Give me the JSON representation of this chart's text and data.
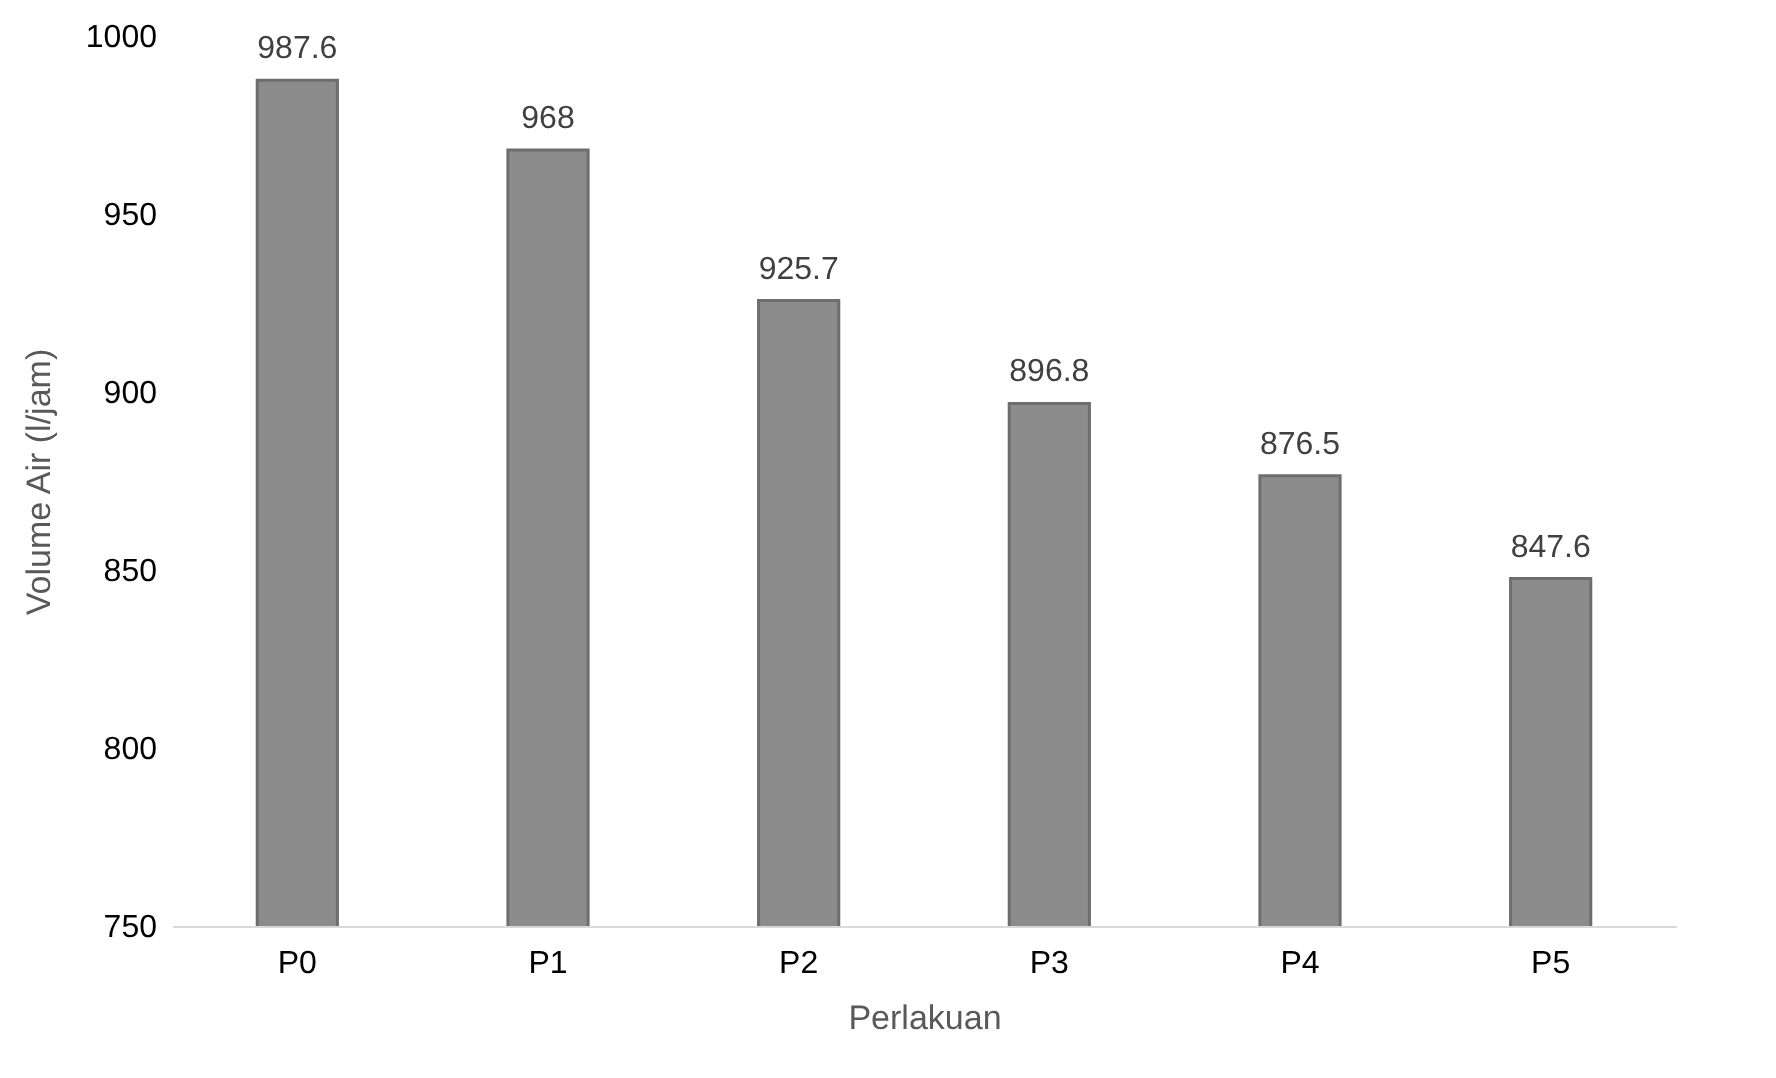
{
  "chart_data": {
    "type": "bar",
    "xlabel": "Perlakuan",
    "ylabel": "Volume Air (l/jam)",
    "categories": [
      "P0",
      "P1",
      "P2",
      "P3",
      "P4",
      "P5"
    ],
    "values": [
      987.6,
      968,
      925.7,
      896.8,
      876.5,
      847.6
    ],
    "color": "#8c8c8c",
    "ylim": [
      750,
      1000
    ],
    "yticks": [
      750,
      800,
      850,
      900,
      950,
      1000
    ],
    "grid": false,
    "data_labels": true
  }
}
